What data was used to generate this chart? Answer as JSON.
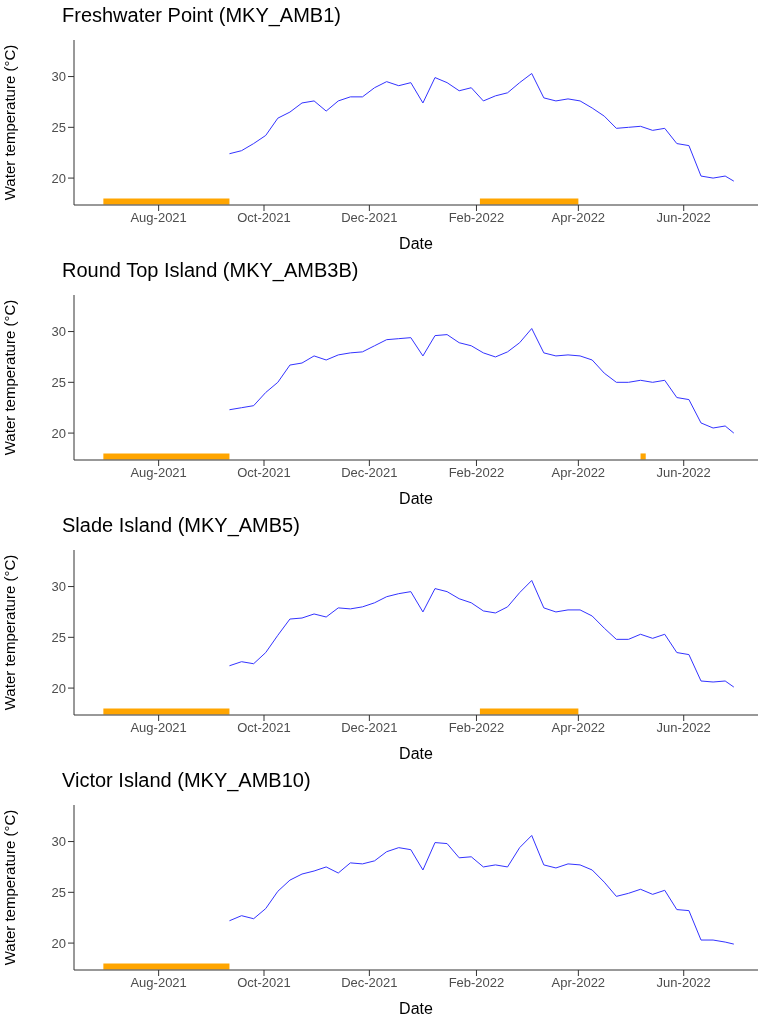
{
  "chart_data": [
    {
      "type": "line",
      "title": "Freshwater Point (MKY_AMB1)",
      "xlabel": "Date",
      "ylabel": "Water temperature (°C)",
      "xlim": [
        "2021-06-13",
        "2022-07-14"
      ],
      "xticks": [
        {
          "value": "2021-08-01",
          "label": "Aug-2021"
        },
        {
          "value": "2021-10-01",
          "label": "Oct-2021"
        },
        {
          "value": "2021-12-01",
          "label": "Dec-2021"
        },
        {
          "value": "2022-02-01",
          "label": "Feb-2022"
        },
        {
          "value": "2022-04-01",
          "label": "Apr-2022"
        },
        {
          "value": "2022-06-01",
          "label": "Jun-2022"
        }
      ],
      "ylim": [
        17.35,
        33.6
      ],
      "yticks": [
        20,
        25,
        30
      ],
      "x": [
        "2021-09-11",
        "2021-09-18",
        "2021-09-25",
        "2021-10-02",
        "2021-10-09",
        "2021-10-16",
        "2021-10-23",
        "2021-10-30",
        "2021-11-06",
        "2021-11-13",
        "2021-11-20",
        "2021-11-27",
        "2021-12-04",
        "2021-12-11",
        "2021-12-18",
        "2021-12-25",
        "2022-01-01",
        "2022-01-08",
        "2022-01-15",
        "2022-01-22",
        "2022-01-29",
        "2022-02-05",
        "2022-02-12",
        "2022-02-19",
        "2022-02-26",
        "2022-03-05",
        "2022-03-12",
        "2022-03-19",
        "2022-03-26",
        "2022-04-02",
        "2022-04-09",
        "2022-04-16",
        "2022-04-23",
        "2022-04-30",
        "2022-05-07",
        "2022-05-14",
        "2022-05-21",
        "2022-05-28",
        "2022-06-04",
        "2022-06-11",
        "2022-06-18",
        "2022-06-25",
        "2022-06-30"
      ],
      "series": [
        {
          "color": "#3333ff",
          "values": [
            22.4,
            22.7,
            23.4,
            24.2,
            25.9,
            26.5,
            27.4,
            27.6,
            26.6,
            27.6,
            28.0,
            28.0,
            28.9,
            29.5,
            29.1,
            29.4,
            27.4,
            29.9,
            29.4,
            28.6,
            28.9,
            27.6,
            28.1,
            28.4,
            29.4,
            30.3,
            27.9,
            27.6,
            27.8,
            27.6,
            26.9,
            26.1,
            24.9,
            25.0,
            25.1,
            24.7,
            24.9,
            23.4,
            23.2,
            20.2,
            20.0,
            20.2,
            19.7
          ]
        },
        {
          "color": "#ffa500",
          "x": [
            "2021-06-30",
            "2021-09-11"
          ],
          "values": [
            17.7,
            17.7
          ]
        },
        {
          "color": "#ffa500",
          "x": [
            "2022-02-03",
            "2022-04-01"
          ],
          "values": [
            17.7,
            17.7
          ]
        }
      ]
    },
    {
      "type": "line",
      "title": "Round Top Island (MKY_AMB3B)",
      "xlabel": "Date",
      "ylabel": "Water temperature (°C)",
      "xlim": [
        "2021-06-13",
        "2022-07-14"
      ],
      "xticks": [
        {
          "value": "2021-08-01",
          "label": "Aug-2021"
        },
        {
          "value": "2021-10-01",
          "label": "Oct-2021"
        },
        {
          "value": "2021-12-01",
          "label": "Dec-2021"
        },
        {
          "value": "2022-02-01",
          "label": "Feb-2022"
        },
        {
          "value": "2022-04-01",
          "label": "Apr-2022"
        },
        {
          "value": "2022-06-01",
          "label": "Jun-2022"
        }
      ],
      "ylim": [
        17.35,
        33.6
      ],
      "yticks": [
        20,
        25,
        30
      ],
      "x": [
        "2021-09-11",
        "2021-09-18",
        "2021-09-25",
        "2021-10-02",
        "2021-10-09",
        "2021-10-16",
        "2021-10-23",
        "2021-10-30",
        "2021-11-06",
        "2021-11-13",
        "2021-11-20",
        "2021-11-27",
        "2021-12-04",
        "2021-12-11",
        "2021-12-18",
        "2021-12-25",
        "2022-01-01",
        "2022-01-08",
        "2022-01-15",
        "2022-01-22",
        "2022-01-29",
        "2022-02-05",
        "2022-02-12",
        "2022-02-19",
        "2022-02-26",
        "2022-03-05",
        "2022-03-12",
        "2022-03-19",
        "2022-03-26",
        "2022-04-02",
        "2022-04-09",
        "2022-04-16",
        "2022-04-23",
        "2022-04-30",
        "2022-05-07",
        "2022-05-14",
        "2022-05-21",
        "2022-05-28",
        "2022-06-04",
        "2022-06-11",
        "2022-06-18",
        "2022-06-25",
        "2022-06-30"
      ],
      "series": [
        {
          "color": "#3333ff",
          "values": [
            22.3,
            22.5,
            22.7,
            24.0,
            25.0,
            26.7,
            26.9,
            27.6,
            27.2,
            27.7,
            27.9,
            28.0,
            28.6,
            29.2,
            29.3,
            29.4,
            27.6,
            29.6,
            29.7,
            28.9,
            28.6,
            27.9,
            27.5,
            28.0,
            28.9,
            30.3,
            27.9,
            27.6,
            27.7,
            27.6,
            27.2,
            25.9,
            25.0,
            25.0,
            25.2,
            25.0,
            25.2,
            23.5,
            23.3,
            21.0,
            20.5,
            20.7,
            20.0
          ]
        },
        {
          "color": "#ffa500",
          "x": [
            "2021-06-30",
            "2021-09-11"
          ],
          "values": [
            17.7,
            17.7
          ]
        },
        {
          "color": "#ffa500",
          "x": [
            "2022-05-07",
            "2022-05-10"
          ],
          "values": [
            17.7,
            17.7
          ]
        }
      ]
    },
    {
      "type": "line",
      "title": "Slade Island (MKY_AMB5)",
      "xlabel": "Date",
      "ylabel": "Water temperature (°C)",
      "xlim": [
        "2021-06-13",
        "2022-07-14"
      ],
      "xticks": [
        {
          "value": "2021-08-01",
          "label": "Aug-2021"
        },
        {
          "value": "2021-10-01",
          "label": "Oct-2021"
        },
        {
          "value": "2021-12-01",
          "label": "Dec-2021"
        },
        {
          "value": "2022-02-01",
          "label": "Feb-2022"
        },
        {
          "value": "2022-04-01",
          "label": "Apr-2022"
        },
        {
          "value": "2022-06-01",
          "label": "Jun-2022"
        }
      ],
      "ylim": [
        17.35,
        33.6
      ],
      "yticks": [
        20,
        25,
        30
      ],
      "x": [
        "2021-09-11",
        "2021-09-18",
        "2021-09-25",
        "2021-10-02",
        "2021-10-09",
        "2021-10-16",
        "2021-10-23",
        "2021-10-30",
        "2021-11-06",
        "2021-11-13",
        "2021-11-20",
        "2021-11-27",
        "2021-12-04",
        "2021-12-11",
        "2021-12-18",
        "2021-12-25",
        "2022-01-01",
        "2022-01-08",
        "2022-01-15",
        "2022-01-22",
        "2022-01-29",
        "2022-02-05",
        "2022-02-12",
        "2022-02-19",
        "2022-02-26",
        "2022-03-05",
        "2022-03-12",
        "2022-03-19",
        "2022-03-26",
        "2022-04-02",
        "2022-04-09",
        "2022-04-16",
        "2022-04-23",
        "2022-04-30",
        "2022-05-07",
        "2022-05-14",
        "2022-05-21",
        "2022-05-28",
        "2022-06-04",
        "2022-06-11",
        "2022-06-18",
        "2022-06-25",
        "2022-06-30"
      ],
      "series": [
        {
          "color": "#3333ff",
          "values": [
            22.2,
            22.6,
            22.4,
            23.5,
            25.2,
            26.8,
            26.9,
            27.3,
            27.0,
            27.9,
            27.8,
            28.0,
            28.4,
            29.0,
            29.3,
            29.5,
            27.5,
            29.8,
            29.5,
            28.8,
            28.4,
            27.6,
            27.4,
            28.0,
            29.4,
            30.6,
            27.9,
            27.5,
            27.7,
            27.7,
            27.1,
            25.9,
            24.8,
            24.8,
            25.3,
            24.9,
            25.3,
            23.5,
            23.3,
            20.7,
            20.6,
            20.7,
            20.1
          ]
        },
        {
          "color": "#ffa500",
          "x": [
            "2021-06-30",
            "2021-09-11"
          ],
          "values": [
            17.7,
            17.7
          ]
        },
        {
          "color": "#ffa500",
          "x": [
            "2022-02-03",
            "2022-04-01"
          ],
          "values": [
            17.7,
            17.7
          ]
        }
      ]
    },
    {
      "type": "line",
      "title": "Victor Island (MKY_AMB10)",
      "xlabel": "Date",
      "ylabel": "Water temperature (°C)",
      "xlim": [
        "2021-06-13",
        "2022-07-14"
      ],
      "xticks": [
        {
          "value": "2021-08-01",
          "label": "Aug-2021"
        },
        {
          "value": "2021-10-01",
          "label": "Oct-2021"
        },
        {
          "value": "2021-12-01",
          "label": "Dec-2021"
        },
        {
          "value": "2022-02-01",
          "label": "Feb-2022"
        },
        {
          "value": "2022-04-01",
          "label": "Apr-2022"
        },
        {
          "value": "2022-06-01",
          "label": "Jun-2022"
        }
      ],
      "ylim": [
        17.35,
        33.6
      ],
      "yticks": [
        20,
        25,
        30
      ],
      "x": [
        "2021-09-11",
        "2021-09-18",
        "2021-09-25",
        "2021-10-02",
        "2021-10-09",
        "2021-10-16",
        "2021-10-23",
        "2021-10-30",
        "2021-11-06",
        "2021-11-13",
        "2021-11-20",
        "2021-11-27",
        "2021-12-04",
        "2021-12-11",
        "2021-12-18",
        "2021-12-25",
        "2022-01-01",
        "2022-01-08",
        "2022-01-15",
        "2022-01-22",
        "2022-01-29",
        "2022-02-05",
        "2022-02-12",
        "2022-02-19",
        "2022-02-26",
        "2022-03-05",
        "2022-03-12",
        "2022-03-19",
        "2022-03-26",
        "2022-04-02",
        "2022-04-09",
        "2022-04-16",
        "2022-04-23",
        "2022-04-30",
        "2022-05-07",
        "2022-05-14",
        "2022-05-21",
        "2022-05-28",
        "2022-06-04",
        "2022-06-11",
        "2022-06-18",
        "2022-06-25",
        "2022-06-30"
      ],
      "series": [
        {
          "color": "#3333ff",
          "values": [
            22.2,
            22.7,
            22.4,
            23.4,
            25.1,
            26.2,
            26.8,
            27.1,
            27.5,
            26.9,
            27.9,
            27.8,
            28.1,
            29.0,
            29.4,
            29.2,
            27.2,
            29.9,
            29.8,
            28.4,
            28.5,
            27.5,
            27.7,
            27.5,
            29.4,
            30.6,
            27.7,
            27.4,
            27.8,
            27.7,
            27.2,
            26.0,
            24.6,
            24.9,
            25.3,
            24.8,
            25.2,
            23.3,
            23.2,
            20.3,
            20.3,
            20.1,
            19.9
          ]
        },
        {
          "color": "#ffa500",
          "x": [
            "2021-06-30",
            "2021-09-11"
          ],
          "values": [
            17.7,
            17.7
          ]
        }
      ]
    }
  ]
}
